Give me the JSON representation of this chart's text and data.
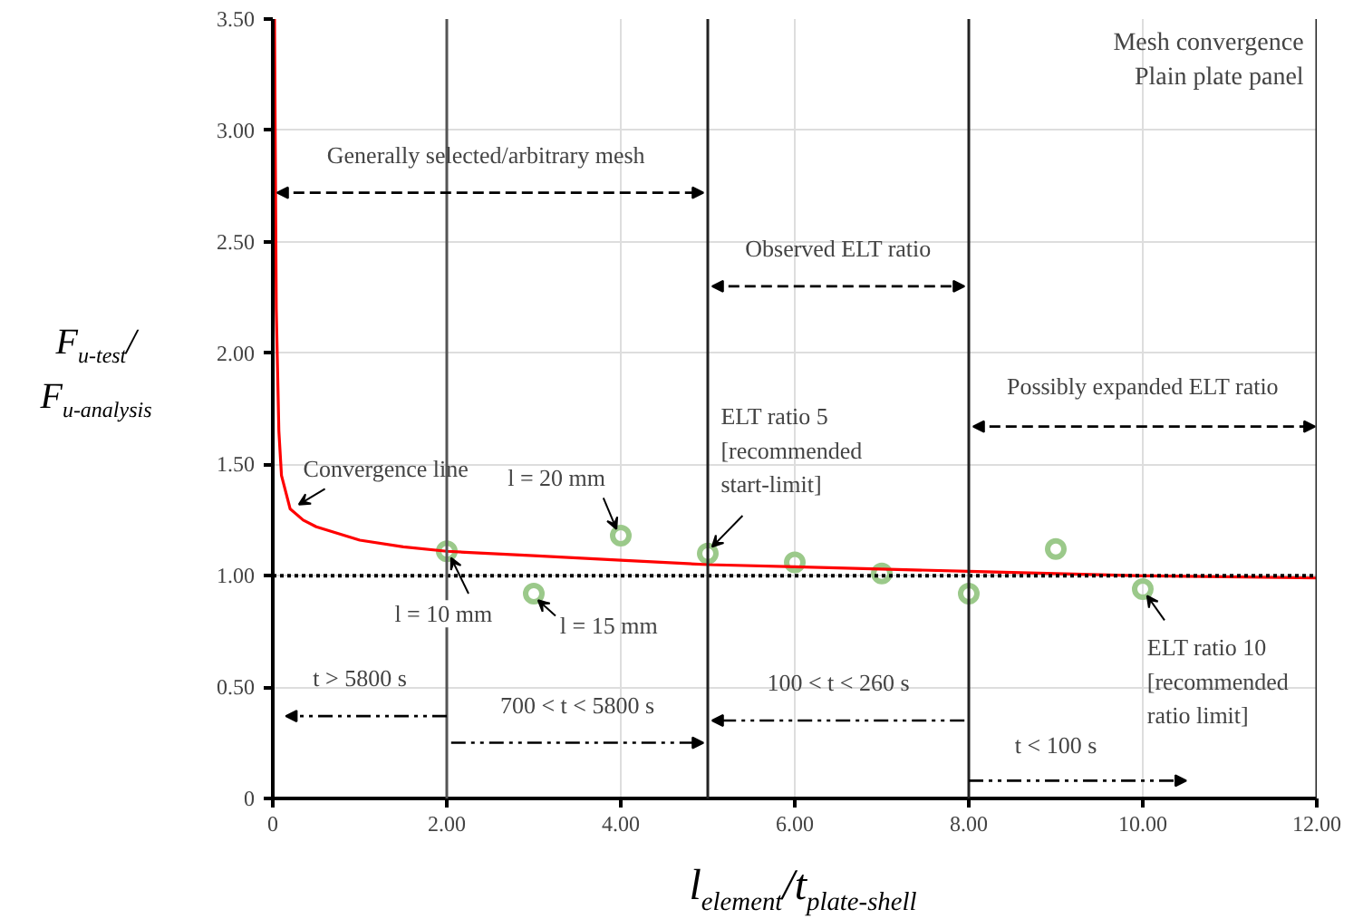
{
  "chart_data": {
    "type": "scatter",
    "xlabel": "l$_{element}$/t$_{plate-shell}$",
    "ylabel": "F$_{u-test}$/F$_{u-analysis}$",
    "xlim": [
      0,
      12
    ],
    "ylim": [
      0,
      3.5
    ],
    "xticks": [
      0,
      {
        "value": 2,
        "label": "2.00"
      },
      {
        "value": 4,
        "label": "4.00"
      },
      {
        "value": 6,
        "label": "6.00"
      },
      {
        "value": 8,
        "label": "8.00"
      },
      {
        "value": 10,
        "label": "10.00"
      },
      {
        "value": 12,
        "label": "12.00"
      }
    ],
    "yticks": [
      0,
      {
        "value": 0.5,
        "label": "0.50"
      },
      {
        "value": 1,
        "label": "1.00"
      },
      {
        "value": 1.5,
        "label": "1.50"
      },
      {
        "value": 2,
        "label": "2.00"
      },
      {
        "value": 2.5,
        "label": "2.50"
      },
      {
        "value": 3,
        "label": "3.00"
      },
      {
        "value": 3.5,
        "label": "3.50"
      }
    ],
    "grid": true,
    "marker": "circle",
    "series": [
      {
        "color": "#9bc98a",
        "x": [
          2,
          3,
          4,
          5,
          6,
          7,
          8,
          9,
          10
        ],
        "values": [
          1.11,
          0.92,
          1.18,
          1.1,
          1.06,
          1.01,
          0.92,
          1.12,
          0.94
        ]
      },
      {
        "type": "line",
        "marker": "none",
        "color": "#ff0000",
        "x": [
          0.02,
          0.04,
          0.07,
          0.1,
          0.2,
          0.35,
          0.5,
          1,
          1.5,
          2,
          3,
          4,
          5,
          6,
          8,
          10,
          12
        ],
        "values": [
          3.5,
          2.2,
          1.65,
          1.45,
          1.3,
          1.25,
          1.22,
          1.16,
          1.13,
          1.11,
          1.09,
          1.07,
          1.05,
          1.04,
          1.02,
          1.0,
          0.99
        ]
      }
    ],
    "ref_lines": [
      {
        "axis": "y",
        "value": 1.0,
        "label": null,
        "color": "#000000",
        "line_style": "dotted"
      },
      {
        "axis": "x",
        "value": 2,
        "label": null,
        "color": "#555555",
        "line_style": "solid"
      },
      {
        "axis": "x",
        "value": 5,
        "label": null,
        "color": "#222222",
        "line_style": "solid"
      },
      {
        "axis": "x",
        "value": 8,
        "label": null,
        "color": "#222222",
        "line_style": "solid"
      },
      {
        "axis": "x",
        "value": 12,
        "label": null,
        "color": "#222222",
        "line_style": "solid"
      }
    ],
    "annotations": [
      "Mesh convergence\nPlain plate panel",
      {
        "text": "Convergence line",
        "x": 0.25,
        "y": 1.29
      },
      {
        "text": "l = 20 mm",
        "x": 4,
        "y": 1.18
      },
      {
        "text": "l = 10 mm",
        "x": 2,
        "y": 1.11
      },
      {
        "text": "l = 15 mm",
        "x": 3,
        "y": 0.92
      },
      {
        "text": "ELT ratio 5\n[recommended\nstart-limit]",
        "x": 5,
        "y": 1.1
      },
      {
        "text": "ELT ratio 10\n[recommended\nratio limit]",
        "x": 10,
        "y": 0.94
      },
      "Generally selected/arbitrary mesh",
      "Observed ELT ratio",
      "Possibly expanded ELT ratio",
      "t > 5800 s",
      "700 < t < 5800 s",
      "100 < t < 260 s",
      "t < 100 s"
    ]
  }
}
